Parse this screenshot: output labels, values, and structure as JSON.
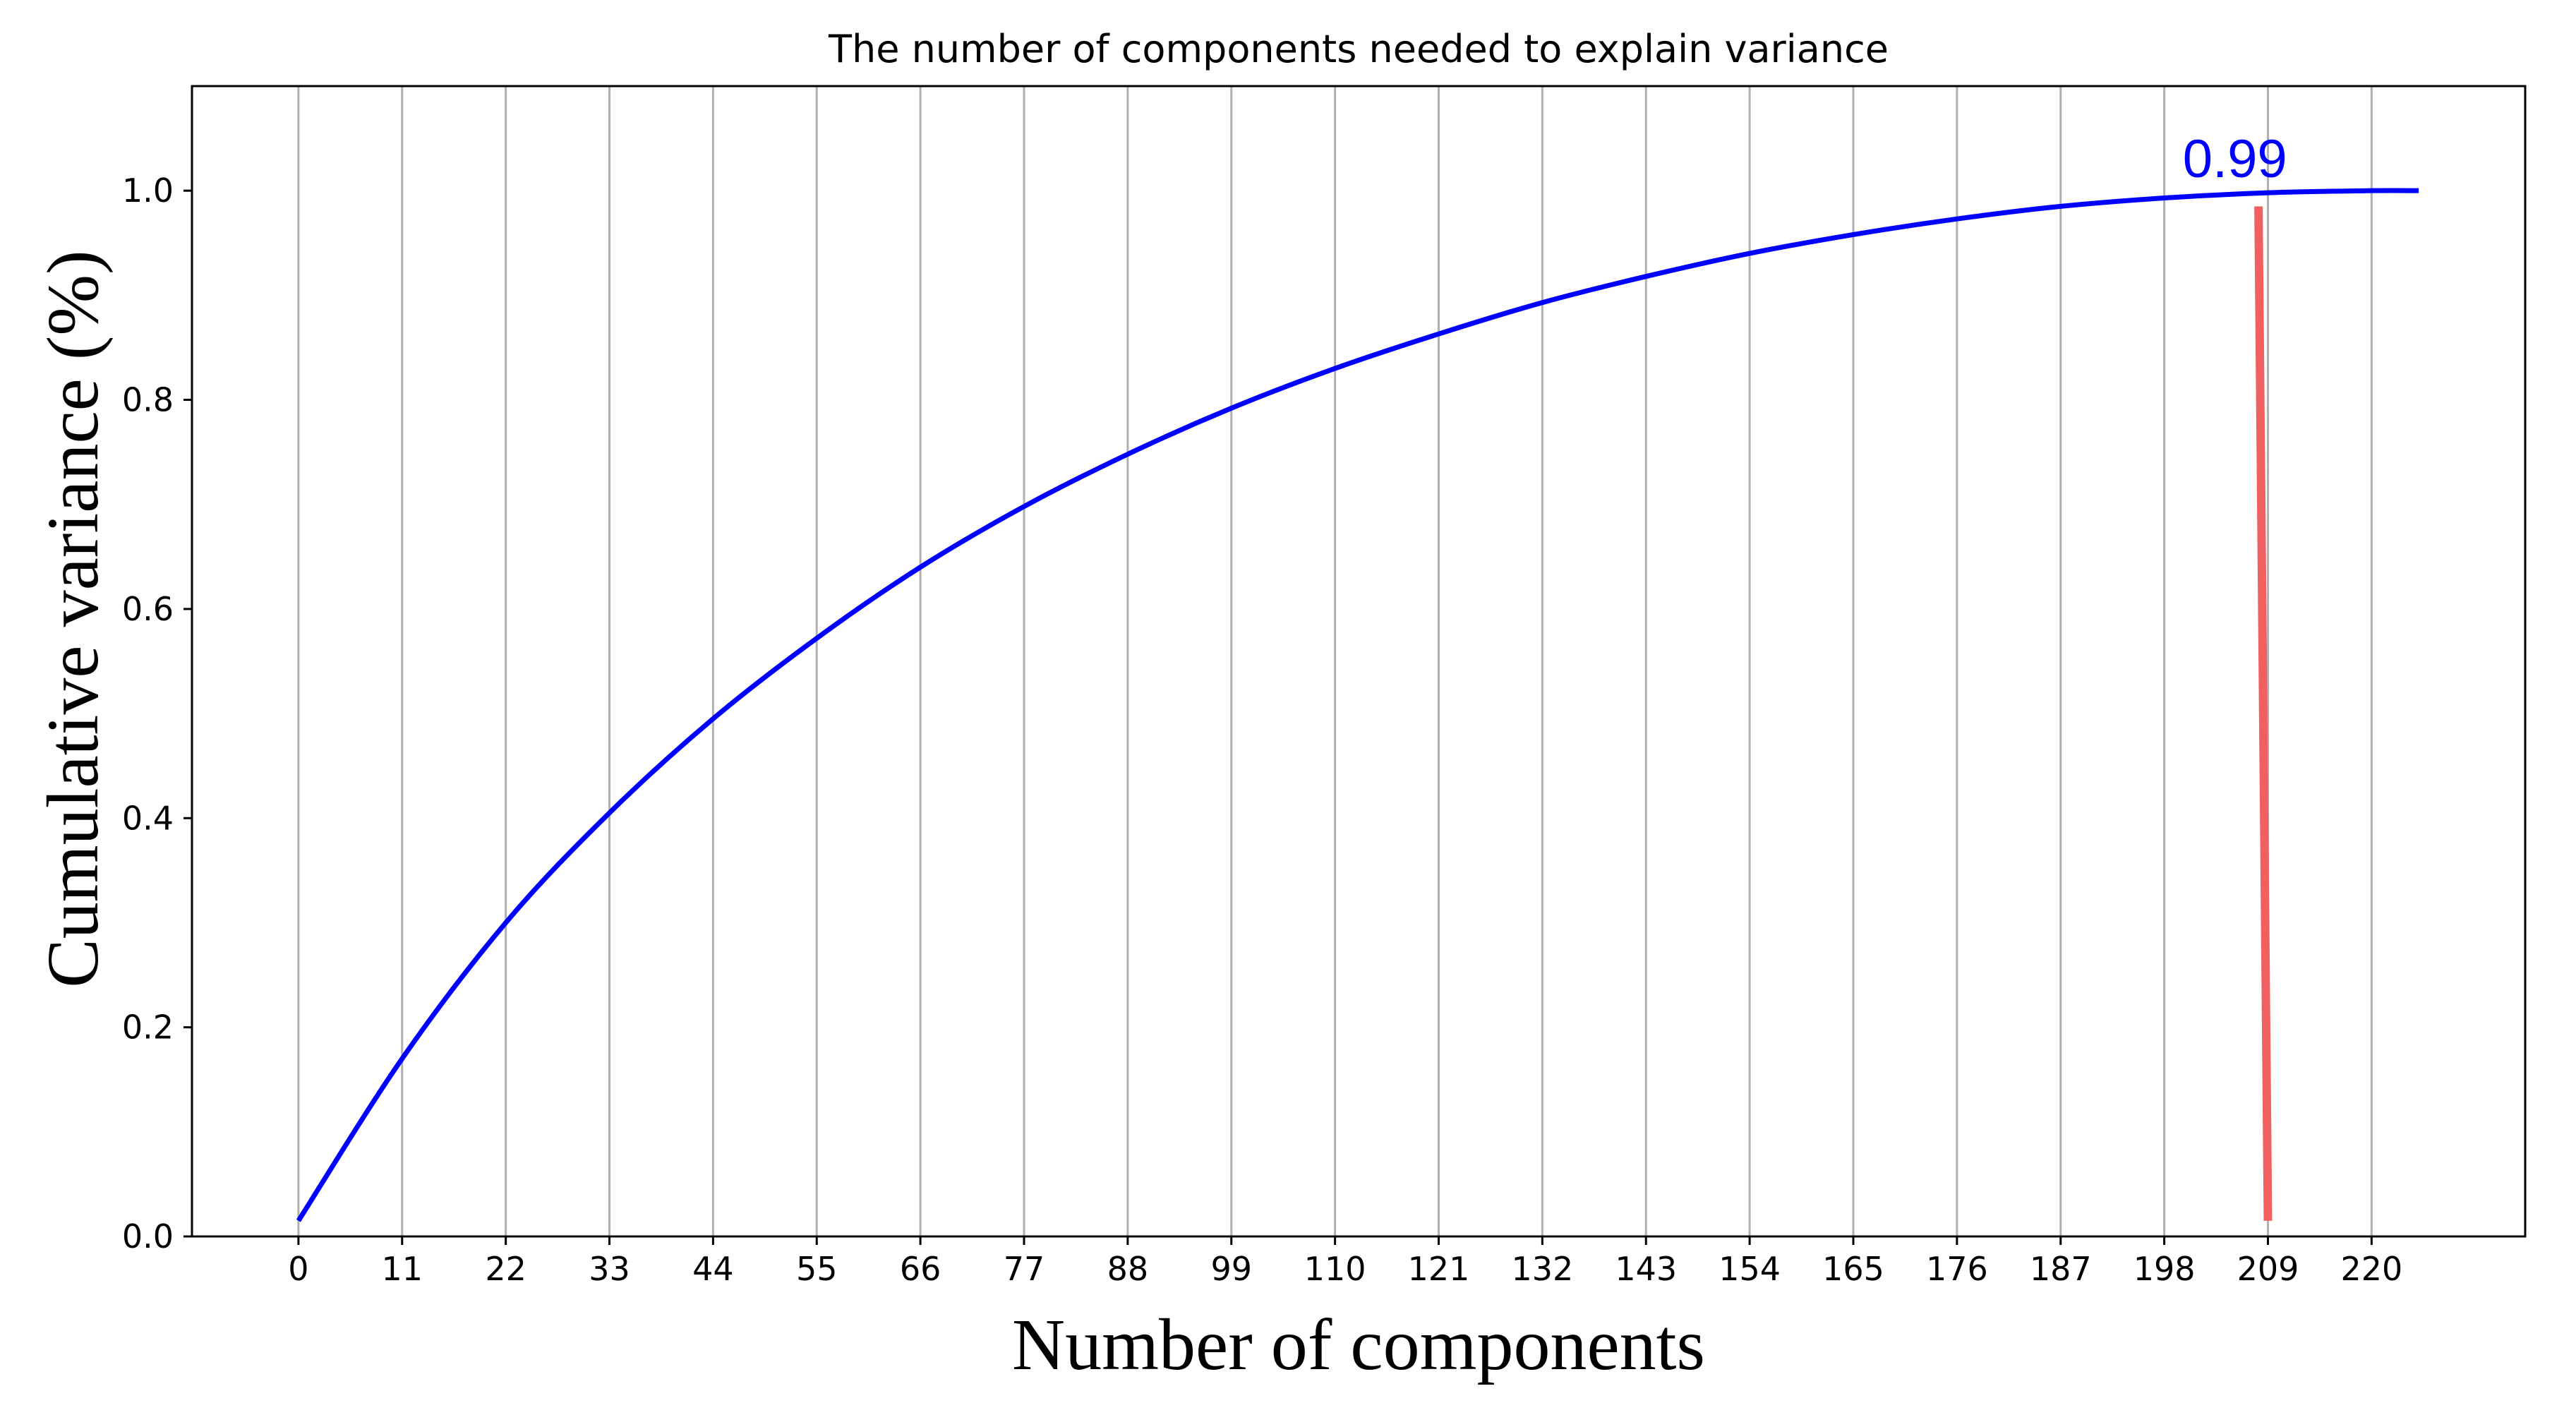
{
  "chart_data": {
    "type": "line",
    "title": "The number of components needed to explain variance",
    "xlabel": "Number of components",
    "ylabel": "Cumulative variance (%)",
    "xlim": [
      -11.3,
      236.3
    ],
    "ylim": [
      0,
      1.1
    ],
    "xticks": [
      0,
      11,
      22,
      33,
      44,
      55,
      66,
      77,
      88,
      99,
      110,
      121,
      132,
      143,
      154,
      165,
      176,
      187,
      198,
      209,
      220
    ],
    "yticks": [
      "0.0",
      "0.2",
      "0.4",
      "0.6",
      "0.8",
      "1.0"
    ],
    "grid": "vertical",
    "series": [
      {
        "color": "#0000ff",
        "x": [
          0,
          11,
          22,
          33,
          44,
          55,
          66,
          77,
          88,
          99,
          110,
          121,
          132,
          143,
          154,
          165,
          176,
          187,
          198,
          209,
          220,
          225
        ],
        "y": [
          0.015,
          0.17,
          0.3,
          0.405,
          0.495,
          0.572,
          0.64,
          0.698,
          0.748,
          0.792,
          0.83,
          0.863,
          0.893,
          0.918,
          0.94,
          0.958,
          0.973,
          0.985,
          0.993,
          0.998,
          1.0,
          1.0
        ]
      }
    ],
    "annotation": {
      "text": "0.99",
      "color": "#0000ff",
      "x": 204,
      "y": 1.025
    },
    "marker_line": {
      "color": "#f06060",
      "x": [
        208,
        209
      ],
      "y": [
        0.985,
        0.015
      ]
    }
  }
}
